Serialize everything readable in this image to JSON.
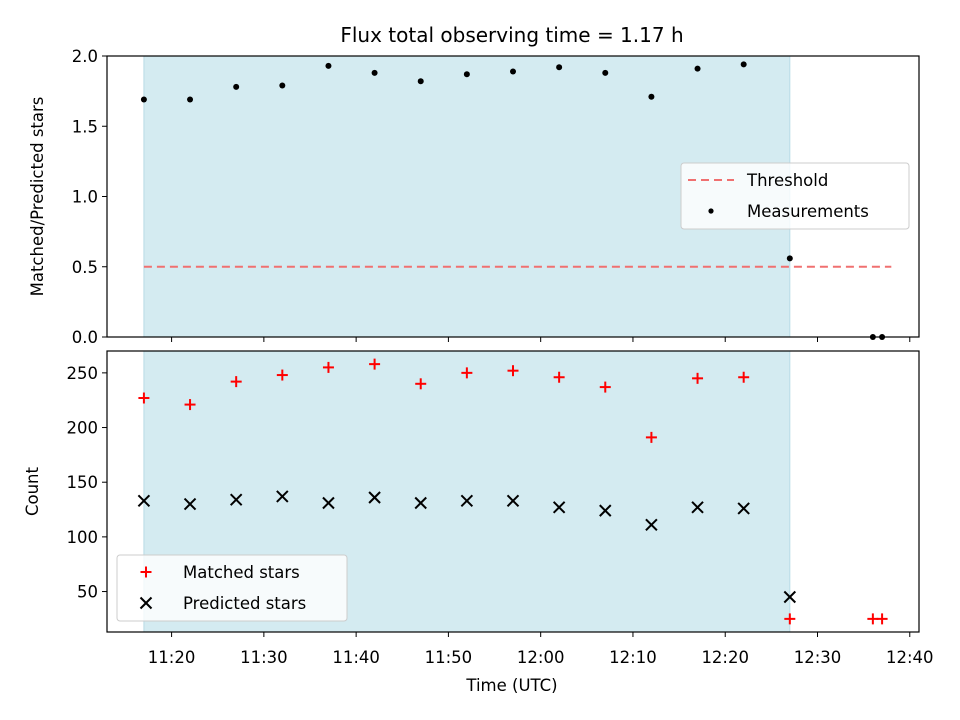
{
  "colors": {
    "shade": "#d4ebf1",
    "shade_edge": "#b9dbe6",
    "threshold": "#f07070",
    "matched": "#ff0000",
    "predicted": "#000000",
    "measurement": "#000000"
  },
  "chart_data": [
    {
      "type": "scatter",
      "title": "Flux total observing time = 1.17 h",
      "xlabel": "",
      "ylabel": "Matched/Predicted stars",
      "ylim": [
        0,
        2.0
      ],
      "yticks": [
        "0.0",
        "0.5",
        "1.0",
        "1.5",
        "2.0"
      ],
      "x_axis_range": [
        "11:13",
        "12:41"
      ],
      "shaded_region": {
        "x_start": "11:17",
        "x_end": "12:27"
      },
      "legend_position": "center-right",
      "series": [
        {
          "name": "Threshold",
          "style": "dashed-line",
          "x": [
            "11:17",
            "12:38"
          ],
          "values": [
            0.5,
            0.5
          ]
        },
        {
          "name": "Measurements",
          "style": "dot",
          "x": [
            "11:17",
            "11:22",
            "11:27",
            "11:32",
            "11:37",
            "11:42",
            "11:47",
            "11:52",
            "11:57",
            "12:02",
            "12:07",
            "12:12",
            "12:17",
            "12:22",
            "12:27",
            "12:36",
            "12:37"
          ],
          "values": [
            1.69,
            1.69,
            1.78,
            1.79,
            1.93,
            1.88,
            1.82,
            1.87,
            1.89,
            1.92,
            1.88,
            1.71,
            1.91,
            1.94,
            0.56,
            0.0,
            0.0
          ]
        }
      ]
    },
    {
      "type": "scatter",
      "title": "",
      "xlabel": "Time (UTC)",
      "ylabel": "Count",
      "ylim": [
        13,
        270
      ],
      "yticks": [
        "50",
        "100",
        "150",
        "200",
        "250"
      ],
      "xticks": [
        "11:20",
        "11:30",
        "11:40",
        "11:50",
        "12:00",
        "12:10",
        "12:20",
        "12:30",
        "12:40"
      ],
      "x_axis_range": [
        "11:13",
        "12:41"
      ],
      "shaded_region": {
        "x_start": "11:17",
        "x_end": "12:27"
      },
      "legend_position": "lower-left",
      "series": [
        {
          "name": "Matched stars",
          "style": "plus",
          "x": [
            "11:17",
            "11:22",
            "11:27",
            "11:32",
            "11:37",
            "11:42",
            "11:47",
            "11:52",
            "11:57",
            "12:02",
            "12:07",
            "12:12",
            "12:17",
            "12:22",
            "12:27",
            "12:36",
            "12:37"
          ],
          "values": [
            227,
            221,
            242,
            248,
            255,
            258,
            240,
            250,
            252,
            246,
            237,
            191,
            245,
            246,
            25,
            25,
            25
          ]
        },
        {
          "name": "Predicted stars",
          "style": "x",
          "x": [
            "11:17",
            "11:22",
            "11:27",
            "11:32",
            "11:37",
            "11:42",
            "11:47",
            "11:52",
            "11:57",
            "12:02",
            "12:07",
            "12:12",
            "12:17",
            "12:22",
            "12:27"
          ],
          "values": [
            133,
            130,
            134,
            137,
            131,
            136,
            131,
            133,
            133,
            127,
            124,
            111,
            127,
            126,
            45
          ]
        }
      ]
    }
  ]
}
